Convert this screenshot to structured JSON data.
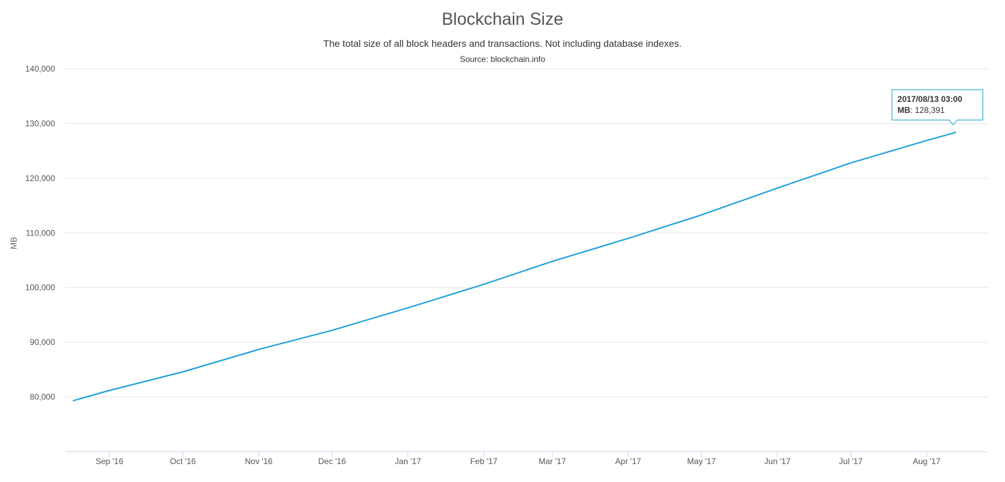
{
  "chart_data": {
    "type": "line",
    "title": "Blockchain Size",
    "subtitle": "The total size of all block headers and transactions. Not including database indexes.",
    "source": "Source: blockchain.info",
    "ylabel": "MB",
    "xlabel": "",
    "ylim": [
      70000,
      140000
    ],
    "y_ticks": [
      80000,
      90000,
      100000,
      110000,
      120000,
      130000,
      140000
    ],
    "y_tick_labels": [
      "80,000",
      "90,000",
      "100,000",
      "110,000",
      "120,000",
      "130,000",
      "140,000"
    ],
    "x_range": [
      "2016-08-14",
      "2017-08-26"
    ],
    "x_ticks": [
      "2016-09-01",
      "2016-10-01",
      "2016-11-01",
      "2016-12-01",
      "2017-01-01",
      "2017-02-01",
      "2017-03-01",
      "2017-04-01",
      "2017-05-01",
      "2017-06-01",
      "2017-07-01",
      "2017-08-01"
    ],
    "x_tick_labels": [
      "Sep '16",
      "Oct '16",
      "Nov '16",
      "Dec '16",
      "Jan '17",
      "Feb '17",
      "Mar '17",
      "Apr '17",
      "May '17",
      "Jun '17",
      "Jul '17",
      "Aug '17"
    ],
    "grid": true,
    "line_color": "#1a9fdb",
    "series": [
      {
        "name": "MB",
        "x": [
          "2016-08-17",
          "2016-09-01",
          "2016-10-01",
          "2016-11-01",
          "2016-12-01",
          "2017-01-01",
          "2017-02-01",
          "2017-03-01",
          "2017-04-01",
          "2017-05-01",
          "2017-06-01",
          "2017-07-01",
          "2017-08-01",
          "2017-08-13"
        ],
        "values": [
          79300,
          81200,
          84600,
          88700,
          92200,
          96300,
          100600,
          104800,
          109000,
          113300,
          118200,
          122800,
          126900,
          128391
        ]
      }
    ],
    "tooltip": {
      "date": "2017/08/13 03:00",
      "label": "MB",
      "value": "128,391"
    }
  }
}
